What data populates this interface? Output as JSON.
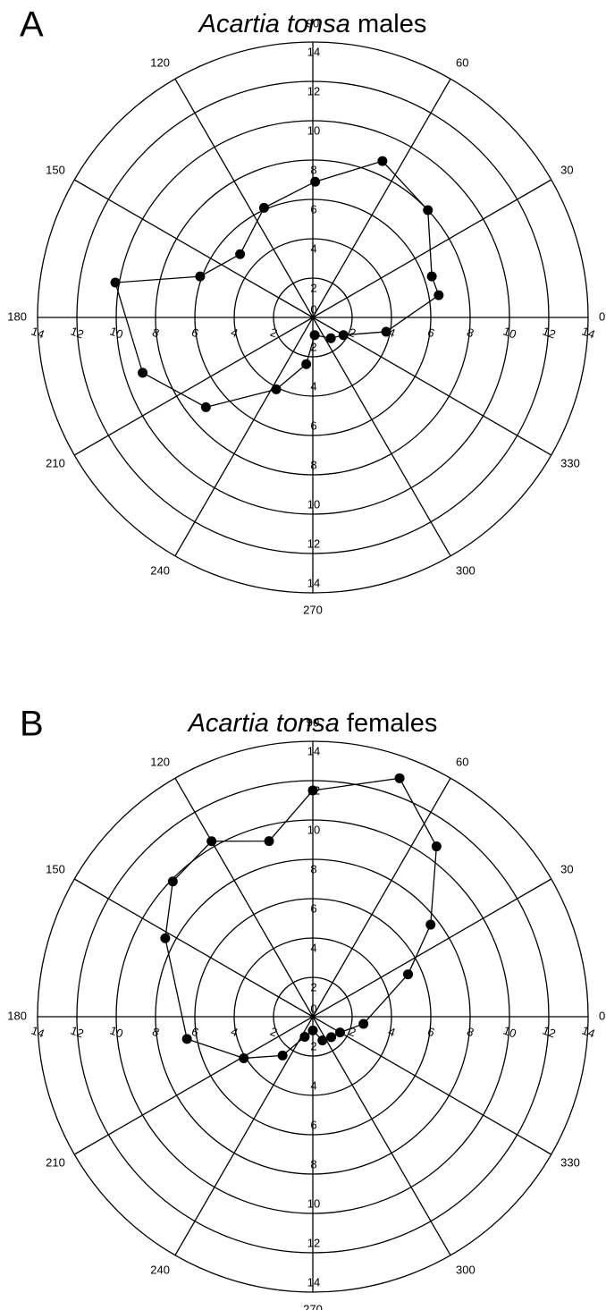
{
  "chart_data": [
    {
      "type": "polar",
      "panel_label": "A",
      "title_species": "Acartia tonsa",
      "title_sex": "males",
      "theta": [
        10,
        19,
        43,
        66,
        89,
        114,
        139,
        160,
        170,
        198,
        220,
        243,
        262,
        276,
        311,
        330,
        349
      ],
      "r": [
        6.5,
        6.4,
        8.0,
        8.7,
        6.9,
        6.1,
        4.9,
        6.1,
        10.2,
        9.1,
        7.1,
        4.1,
        2.4,
        0.9,
        1.4,
        1.8,
        3.8
      ],
      "rlim": [
        0,
        14
      ],
      "rticks": [
        0,
        2,
        4,
        6,
        8,
        10,
        12,
        14
      ],
      "thetaticks": [
        0,
        30,
        60,
        90,
        120,
        150,
        180,
        210,
        240,
        270,
        300,
        330
      ],
      "color": "#000000"
    },
    {
      "type": "polar",
      "panel_label": "B",
      "title_species": "Acartia tonsa",
      "title_sex": "females",
      "theta": [
        24,
        38,
        54,
        70,
        90,
        104,
        120,
        136,
        152,
        190,
        211,
        232,
        248,
        270,
        292,
        312,
        330,
        352
      ],
      "r": [
        5.3,
        7.6,
        10.7,
        12.9,
        11.5,
        9.2,
        10.3,
        9.9,
        8.5,
        6.5,
        4.1,
        2.5,
        1.1,
        0.7,
        1.3,
        1.4,
        1.6,
        2.6
      ],
      "rlim": [
        0,
        14
      ],
      "rticks": [
        0,
        2,
        4,
        6,
        8,
        10,
        12,
        14
      ],
      "thetaticks": [
        0,
        30,
        60,
        90,
        120,
        150,
        180,
        210,
        240,
        270,
        300,
        330
      ],
      "color": "#000000"
    }
  ]
}
